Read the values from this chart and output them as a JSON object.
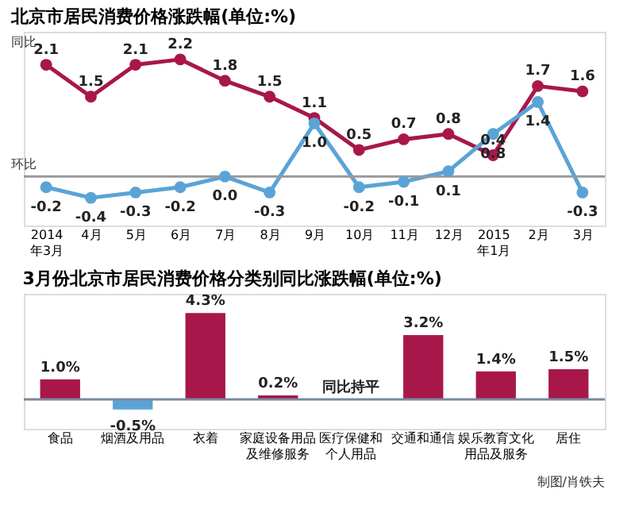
{
  "chart_data": [
    {
      "type": "line",
      "title": "北京市居民消费价格涨跌幅(单位:%)",
      "categories": [
        "2014年3月",
        "4月",
        "5月",
        "6月",
        "7月",
        "8月",
        "9月",
        "10月",
        "11月",
        "12月",
        "2015年1月",
        "2月",
        "3月"
      ],
      "series": [
        {
          "name": "同比",
          "color": "#a8174a",
          "line_style": "solid",
          "values": [
            2.1,
            1.5,
            2.1,
            2.2,
            1.8,
            1.5,
            1.1,
            0.5,
            0.7,
            0.8,
            0.4,
            1.7,
            1.6
          ],
          "value_labels": [
            "2.1",
            "1.5",
            "2.1",
            "2.2",
            "1.8",
            "1.5",
            "1.1",
            "0.5",
            "0.7",
            "0.8",
            "0.4",
            "1.7",
            "1.6"
          ]
        },
        {
          "name": "环比",
          "color": "#5ba3d6",
          "line_style": "solid",
          "values": [
            -0.2,
            -0.4,
            -0.3,
            -0.2,
            0.0,
            -0.3,
            1.0,
            -0.2,
            -0.1,
            0.1,
            0.8,
            1.4,
            -0.3
          ],
          "value_labels": [
            "-0.2",
            "-0.4",
            "-0.3",
            "-0.2",
            "0.0",
            "-0.3",
            "1.0",
            "-0.2",
            "-0.1",
            "0.1",
            "0.8",
            "1.4",
            "-0.3"
          ]
        }
      ],
      "marker": "circle",
      "tick_labels": "x",
      "ref_lines": [
        {
          "axis": "y",
          "value": 0,
          "color": "#999999"
        }
      ]
    },
    {
      "type": "bar",
      "title": "3月份北京市居民消费价格分类别同比涨跌幅(单位:%)",
      "categories": [
        "食品",
        "烟酒及用品",
        "衣着",
        "家庭设备用品及维修服务",
        "医疗保健和个人用品",
        "交通和通信",
        "娱乐教育文化用品及服务",
        "居住"
      ],
      "values": [
        1.0,
        -0.5,
        4.3,
        0.2,
        0,
        3.2,
        1.4,
        1.5
      ],
      "colors": [
        "#a8174a",
        "#5ba3d6",
        "#a8174a",
        "#a8174a",
        "#a8174a",
        "#a8174a",
        "#a8174a",
        "#a8174a"
      ],
      "value_labels": [
        "1.0%",
        "-0.5%",
        "4.3%",
        "0.2%",
        "同比持平",
        "3.2%",
        "1.4%",
        "1.5%"
      ],
      "tick_labels": "x",
      "ref_lines": [
        {
          "axis": "y",
          "value": 0,
          "color": "#7a8a99"
        }
      ],
      "annotations": [
        "制图/肖铁夫"
      ]
    }
  ]
}
